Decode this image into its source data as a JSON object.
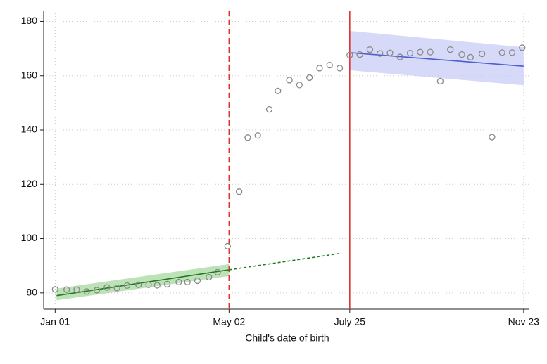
{
  "chart_data": {
    "type": "scatter",
    "x_label": "Child's date of birth",
    "xlim": [
      -8,
      330
    ],
    "ylim": [
      74,
      184
    ],
    "xticks": [
      {
        "value": 0,
        "label": "Jan 01"
      },
      {
        "value": 121,
        "label": "May 02"
      },
      {
        "value": 205,
        "label": "July 25"
      },
      {
        "value": 326,
        "label": "Nov 23"
      }
    ],
    "yticks": [
      80,
      100,
      120,
      140,
      160,
      180
    ],
    "grid": true,
    "points": {
      "color": "#888888",
      "x": [
        0,
        8,
        15,
        22,
        29,
        36,
        43,
        50,
        58,
        65,
        71,
        78,
        86,
        92,
        99,
        107,
        113,
        120,
        128,
        134,
        141,
        149,
        155,
        163,
        170,
        177,
        184,
        191,
        198,
        205,
        212,
        219,
        226,
        233,
        240,
        247,
        254,
        261,
        268,
        275,
        283,
        289,
        297,
        304,
        311,
        318,
        325
      ],
      "values": [
        81.3,
        81.2,
        81.2,
        80.5,
        81,
        82,
        81.8,
        82.7,
        83,
        83,
        82.8,
        83.2,
        84,
        84,
        84.5,
        85.8,
        87.6,
        97.2,
        117.3,
        137.2,
        138,
        147.6,
        154.4,
        158.4,
        156.6,
        159.3,
        162.8,
        163.9,
        162.8,
        167.6,
        167.8,
        169.6,
        168.2,
        168.4,
        166.9,
        168.3,
        168.7,
        168.7,
        158,
        169.6,
        167.8,
        166.8,
        168.1,
        137.4,
        168.5,
        168.5,
        170.3
      ]
    },
    "fits": [
      {
        "color": "#1f7a1f",
        "band_color": "#a8d8a0",
        "x": [
          1,
          121
        ],
        "values": [
          79,
          88.5
        ],
        "ci_low": [
          77.3,
          86.2
        ],
        "ci_high": [
          81.6,
          90.6
        ]
      },
      {
        "color": "#4a5fd0",
        "band_color": "#c8ccf4",
        "x": [
          205,
          326
        ],
        "values": [
          168.5,
          163.5
        ],
        "ci_low": [
          162,
          156.5
        ],
        "ci_high": [
          176.5,
          170.5
        ]
      }
    ],
    "extrapolation": {
      "color": "#1f7a1f",
      "x": [
        121,
        198
      ],
      "values": [
        88.5,
        94.5
      ]
    },
    "vlines": [
      {
        "value": 121,
        "style": "dashed",
        "color": "#e03030"
      },
      {
        "value": 205,
        "style": "solid",
        "color": "#e03030"
      }
    ]
  }
}
